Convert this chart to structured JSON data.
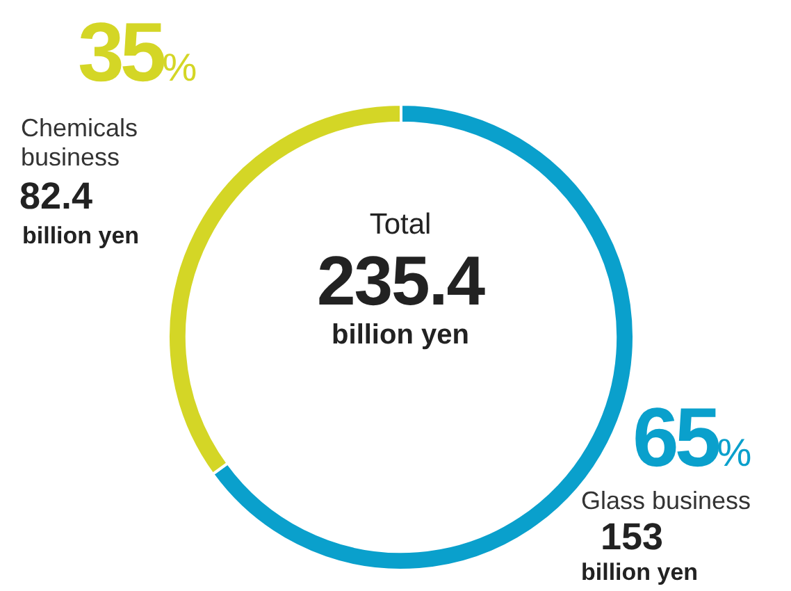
{
  "chart_data": {
    "type": "donut",
    "categories": [
      "Glass business",
      "Chemicals business"
    ],
    "values": [
      153,
      82.4
    ],
    "colors": [
      "#0aa0cc",
      "#d4d626"
    ],
    "data_labels": true,
    "annotations": [
      "Total",
      "235.4",
      "billion yen",
      "65%",
      "35%",
      "billion yen",
      "billion yen"
    ]
  }
}
